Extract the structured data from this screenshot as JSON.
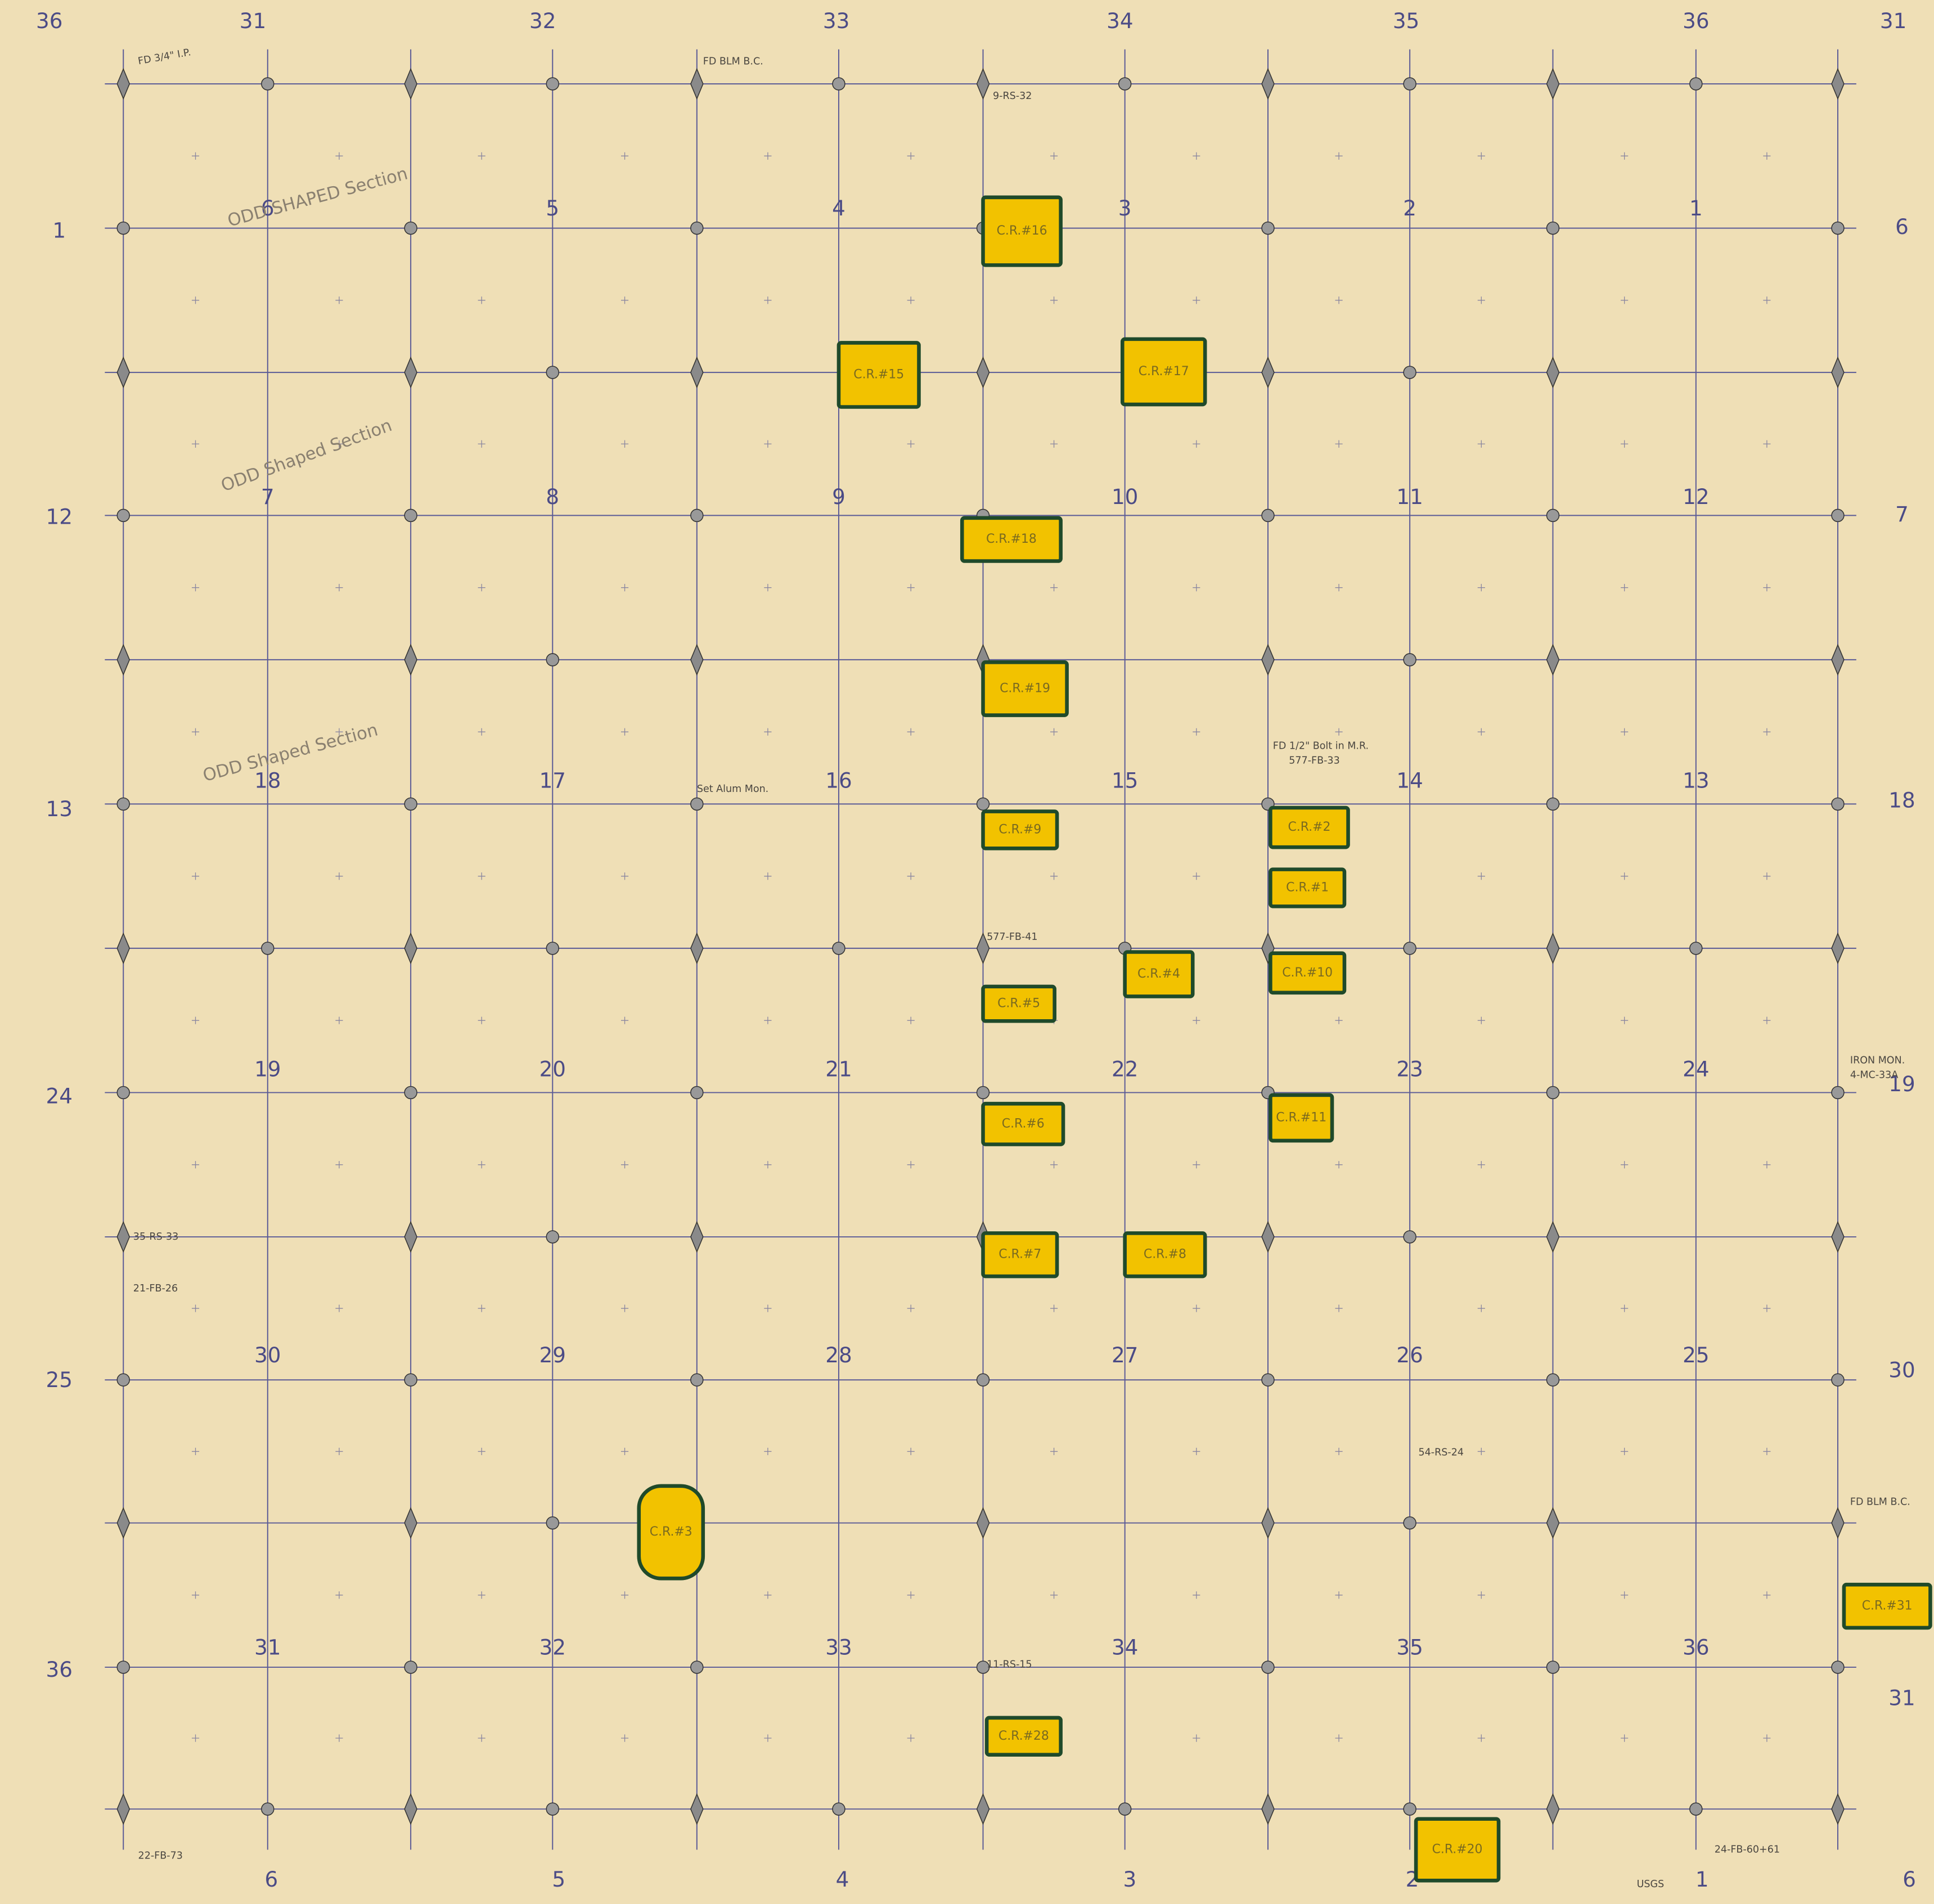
{
  "edge_labels": {
    "top": [
      "36",
      "31",
      "32",
      "33",
      "34",
      "35",
      "36",
      "31"
    ],
    "left": [
      "1",
      "12",
      "13",
      "24",
      "25",
      "36"
    ],
    "right": [
      "6",
      "7",
      "18",
      "19",
      "30",
      "31"
    ],
    "bottom": [
      "6",
      "5",
      "4",
      "3",
      "2",
      "1",
      "6"
    ]
  },
  "sections": [
    [
      "6",
      "5",
      "4",
      "3",
      "2",
      "1"
    ],
    [
      "7",
      "8",
      "9",
      "10",
      "11",
      "12"
    ],
    [
      "18",
      "17",
      "16",
      "15",
      "14",
      "13"
    ],
    [
      "19",
      "20",
      "21",
      "22",
      "23",
      "24"
    ],
    [
      "30",
      "29",
      "28",
      "27",
      "26",
      "25"
    ],
    [
      "31",
      "32",
      "33",
      "34",
      "35",
      "36"
    ]
  ],
  "corner_records": [
    "C.R.#16",
    "C.R.#15",
    "C.R.#17",
    "C.R.#18",
    "C.R.#19",
    "C.R.#9",
    "C.R.#2",
    "C.R.#1",
    "C.R.#4",
    "C.R.#10",
    "C.R.#5",
    "C.R.#6",
    "C.R.#11",
    "C.R.#7",
    "C.R.#8",
    "C.R.#3",
    "C.R.#31",
    "C.R.#28",
    "C.R.#20"
  ],
  "notes": [
    "ODD SHAPED Section",
    "ODD Shaped Section",
    "ODD Shaped Section",
    "FD 3/4\" I.P.",
    "FD BLM B.C.",
    "9-RS-32",
    "Set Alum Mon.",
    "577-FB-41",
    "FD 1/2\" Bolt in M.R.",
    "577-FB-33",
    "IRON MON.",
    "4-MC-33A",
    "FD BLM B.C.",
    "22-FB-73",
    "24-FB-60+61",
    "USGS",
    "35-RS-33",
    "21-FB-26",
    "11-RS-15",
    "54-RS-24"
  ]
}
